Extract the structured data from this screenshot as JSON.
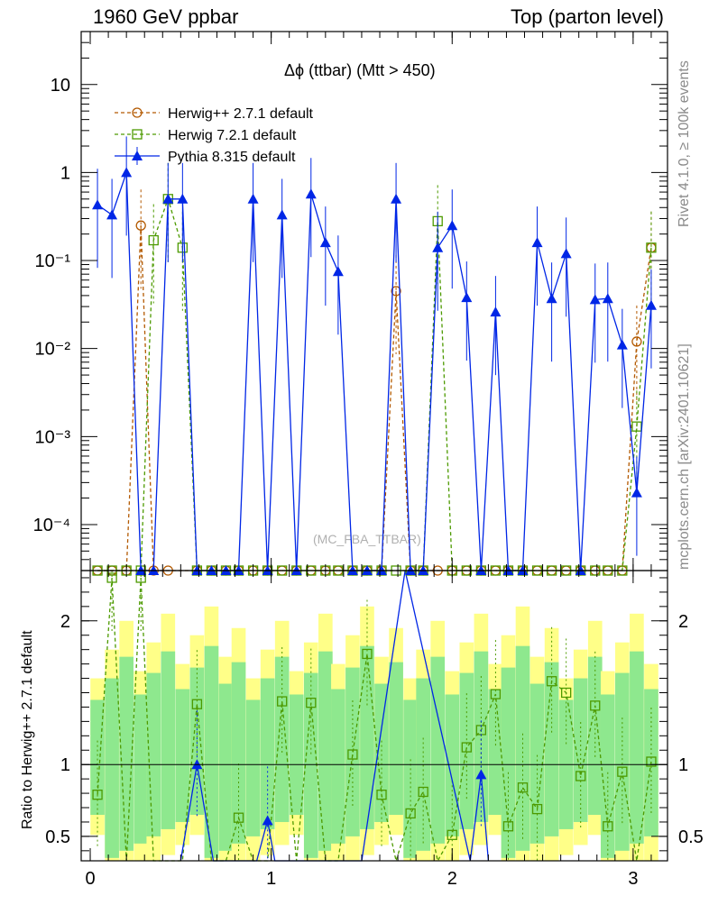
{
  "header": {
    "left": "1960 GeV ppbar",
    "right": "Top (parton level)"
  },
  "side_notes": {
    "rivet": "Rivet 4.1.0, ≥ 100k events",
    "mcplots": "mcplots.cern.ch [arXiv:2401.10621]"
  },
  "watermark": "(MC_FBA_TTBAR)",
  "ratio_ylabel": "Ratio to Herwig++ 2.7.1 default",
  "chart_data": [
    {
      "type": "line",
      "title": "Δϕ (ttbar) (Mtt > 450)",
      "xlabel": "",
      "ylabel": "",
      "yscale": "log",
      "xlim": [
        -0.05,
        3.19
      ],
      "ylim": [
        3e-05,
        40
      ],
      "x_ticks": [
        0,
        1,
        2,
        3
      ],
      "x_tick_labels": [
        "0",
        "1",
        "2",
        "3"
      ],
      "y_ticks": [
        0.0001,
        0.001,
        0.01,
        0.1,
        1,
        10
      ],
      "y_tick_labels": [
        "10⁻⁴",
        "10⁻³",
        "10⁻²",
        "10⁻¹",
        "1",
        "10"
      ],
      "legend_position": "top-left",
      "series": [
        {
          "name": "Herwig++ 2.7.1 default",
          "color": "#b35900",
          "marker": "circle",
          "style": "dashed",
          "points": [
            [
              0.28,
              0.25
            ],
            [
              1.69,
              0.045
            ],
            [
              3.02,
              0.012
            ],
            [
              3.1,
              0.14
            ]
          ],
          "floor_x": [
            0.04,
            0.12,
            0.2,
            0.35,
            0.43,
            0.59,
            0.67,
            0.75,
            0.82,
            0.9,
            0.98,
            1.06,
            1.14,
            1.22,
            1.3,
            1.37,
            1.45,
            1.53,
            1.61,
            1.77,
            1.84,
            1.92,
            2.0,
            2.08,
            2.16,
            2.24,
            2.31,
            2.39,
            2.47,
            2.55,
            2.63,
            2.71,
            2.79,
            2.86,
            2.94
          ]
        },
        {
          "name": "Herwig 7.2.1 default",
          "color": "#4d9a00",
          "marker": "square",
          "style": "dashed",
          "points": [
            [
              0.35,
              0.17
            ],
            [
              0.43,
              0.5
            ],
            [
              0.51,
              0.14
            ],
            [
              1.92,
              0.28
            ],
            [
              3.02,
              0.0013
            ],
            [
              3.1,
              0.14
            ]
          ],
          "floor_x": [
            0.04,
            0.12,
            0.2,
            0.28,
            0.59,
            0.67,
            0.75,
            0.82,
            0.9,
            0.98,
            1.06,
            1.14,
            1.22,
            1.3,
            1.37,
            1.45,
            1.53,
            1.61,
            1.69,
            1.77,
            1.84,
            2.0,
            2.08,
            2.16,
            2.24,
            2.31,
            2.39,
            2.47,
            2.55,
            2.63,
            2.71,
            2.79,
            2.86,
            2.94
          ]
        },
        {
          "name": "Pythia 8.315 default",
          "color": "#0026e6",
          "marker": "triangle",
          "style": "solid",
          "points": [
            [
              0.04,
              0.43
            ],
            [
              0.12,
              0.33
            ],
            [
              0.2,
              1.0
            ],
            [
              0.43,
              0.5
            ],
            [
              0.51,
              0.5
            ],
            [
              0.9,
              0.5
            ],
            [
              1.06,
              0.33
            ],
            [
              1.22,
              0.57
            ],
            [
              1.3,
              0.16
            ],
            [
              1.37,
              0.075
            ],
            [
              1.69,
              0.5
            ],
            [
              1.92,
              0.14
            ],
            [
              2.0,
              0.25
            ],
            [
              2.08,
              0.038
            ],
            [
              2.24,
              0.026
            ],
            [
              2.47,
              0.16
            ],
            [
              2.55,
              0.037
            ],
            [
              2.63,
              0.12
            ],
            [
              2.79,
              0.036
            ],
            [
              2.86,
              0.037
            ],
            [
              2.94,
              0.011
            ],
            [
              3.02,
              0.00023
            ],
            [
              3.1,
              0.031
            ]
          ],
          "floor_x": [
            0.28,
            0.35,
            0.59,
            0.67,
            0.75,
            0.82,
            0.98,
            1.14,
            1.45,
            1.53,
            1.61,
            1.77,
            1.84,
            2.16,
            2.31,
            2.39,
            2.71
          ]
        }
      ]
    },
    {
      "type": "line",
      "title": "",
      "xlabel": "",
      "ylabel": "Ratio to Herwig++ 2.7.1 default",
      "xlim": [
        -0.05,
        3.19
      ],
      "ylim": [
        0.33,
        2.35
      ],
      "x_ticks": [
        0,
        1,
        2,
        3
      ],
      "x_tick_labels": [
        "0",
        "1",
        "2",
        "3"
      ],
      "y_ticks": [
        0.5,
        1,
        2
      ],
      "y_tick_labels": [
        "0.5",
        "1",
        "2"
      ],
      "reference_line": 1,
      "series": [
        {
          "name": "Herwig 7.2.1 / Herwig++ 2.7.1",
          "color": "#4d9a00",
          "marker": "square",
          "points": [
            [
              0.04,
              0.79
            ],
            [
              0.12,
              2.3
            ],
            [
              0.2,
              0.3
            ],
            [
              0.28,
              2.3
            ],
            [
              0.35,
              0.3
            ],
            [
              0.43,
              0.3
            ],
            [
              0.51,
              0.3
            ],
            [
              0.59,
              1.42
            ],
            [
              0.67,
              0.3
            ],
            [
              0.75,
              0.3
            ],
            [
              0.82,
              0.63
            ],
            [
              0.9,
              0.3
            ],
            [
              0.98,
              0.3
            ],
            [
              1.06,
              1.44
            ],
            [
              1.14,
              0.3
            ],
            [
              1.22,
              1.43
            ],
            [
              1.3,
              0.3
            ],
            [
              1.37,
              0.3
            ],
            [
              1.45,
              1.07
            ],
            [
              1.53,
              1.77
            ],
            [
              1.61,
              0.79
            ],
            [
              1.69,
              0.3
            ],
            [
              1.77,
              0.66
            ],
            [
              1.84,
              0.81
            ],
            [
              1.92,
              0.3
            ],
            [
              2.0,
              0.51
            ],
            [
              2.08,
              1.12
            ],
            [
              2.16,
              1.24
            ],
            [
              2.24,
              1.49
            ],
            [
              2.31,
              0.57
            ],
            [
              2.39,
              0.84
            ],
            [
              2.47,
              0.69
            ],
            [
              2.55,
              1.58
            ],
            [
              2.63,
              1.5
            ],
            [
              2.71,
              0.92
            ],
            [
              2.79,
              1.41
            ],
            [
              2.86,
              0.57
            ],
            [
              2.94,
              0.95
            ],
            [
              3.02,
              0.3
            ],
            [
              3.1,
              1.02
            ]
          ]
        },
        {
          "name": "Pythia 8.315 / Herwig++ 2.7.1",
          "color": "#0026e6",
          "marker": "triangle",
          "points": [
            [
              0.5,
              0.3
            ],
            [
              0.59,
              1.0
            ],
            [
              0.68,
              0.3
            ],
            [
              0.92,
              0.3
            ],
            [
              0.98,
              0.61
            ],
            [
              1.02,
              0.3
            ],
            [
              1.5,
              0.3
            ],
            [
              1.74,
              2.4
            ],
            [
              2.1,
              0.3
            ],
            [
              2.16,
              0.93
            ],
            [
              2.2,
              0.3
            ]
          ]
        }
      ]
    }
  ]
}
